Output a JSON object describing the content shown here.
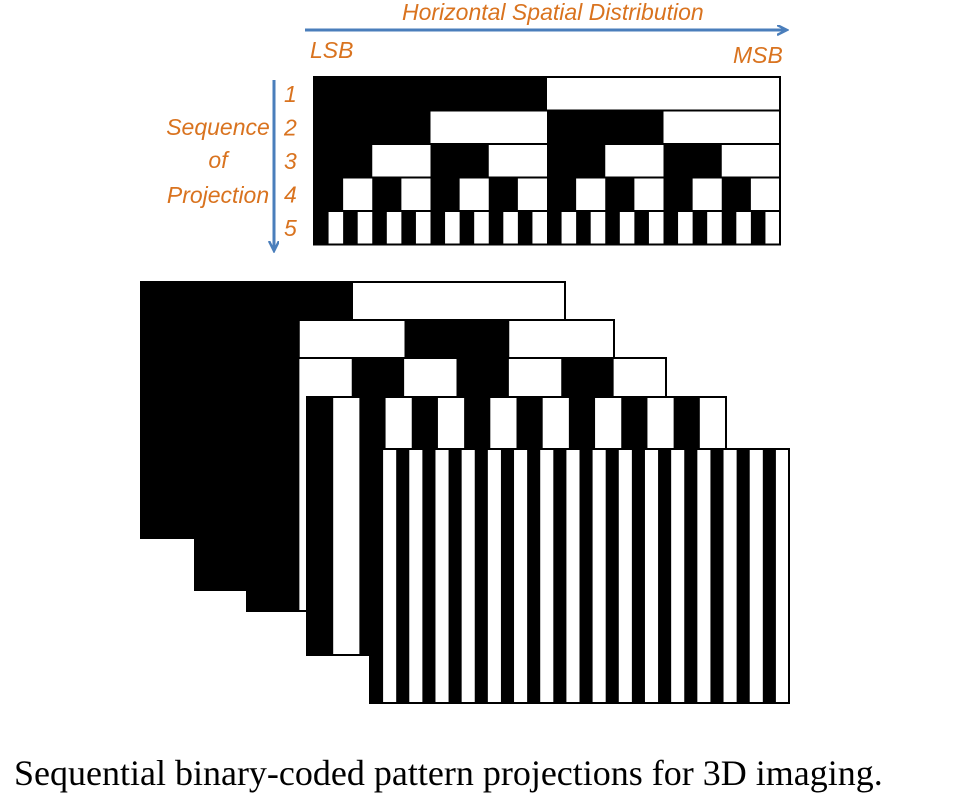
{
  "header": {
    "axis_title": "Horizontal Spatial Distribution",
    "lsb": "LSB",
    "msb": "MSB"
  },
  "side": {
    "line1": "Sequence",
    "line2": "of",
    "line3": "Projection"
  },
  "rows": [
    {
      "label": "1",
      "bits": 1
    },
    {
      "label": "2",
      "bits": 2
    },
    {
      "label": "3",
      "bits": 3
    },
    {
      "label": "4",
      "bits": 4
    },
    {
      "label": "5",
      "bits": 5
    }
  ],
  "colors": {
    "arrow": "#4a7ebb",
    "label": "#d9731f",
    "stripe_dark": "#000000",
    "stripe_light": "#ffffff"
  },
  "caption": "Sequential binary-coded pattern projections for 3D imaging."
}
